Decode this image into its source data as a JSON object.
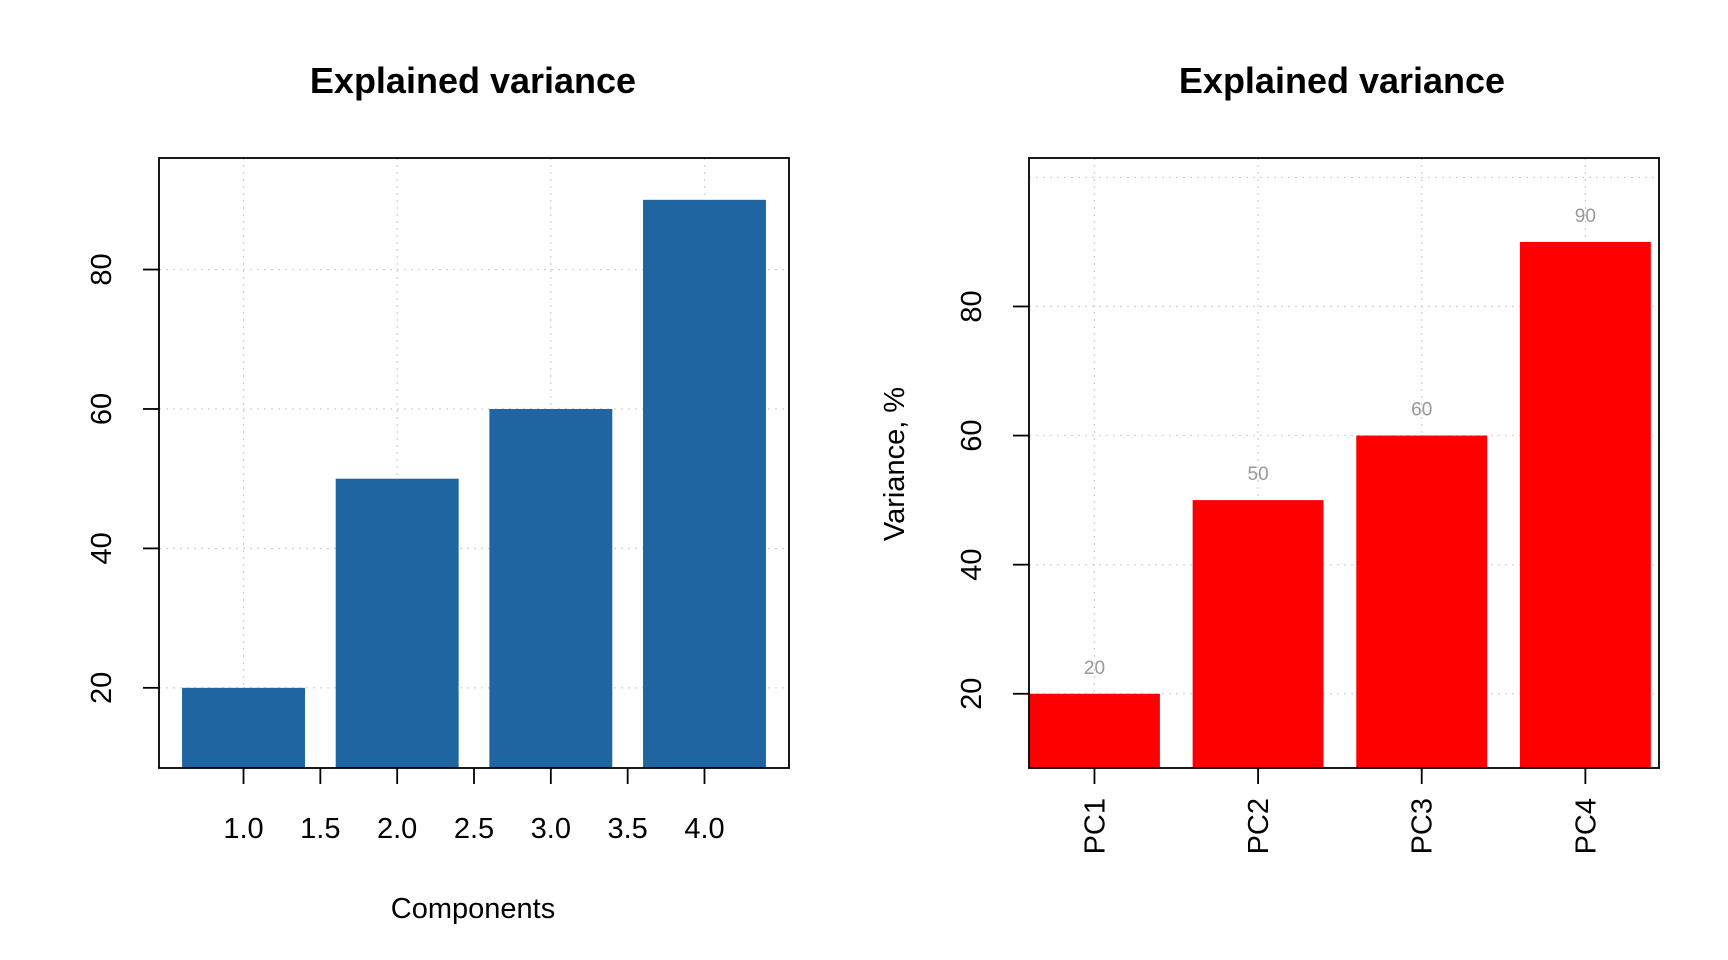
{
  "chart_data": [
    {
      "type": "bar",
      "title": "Explained variance",
      "xlabel": "Components",
      "ylabel": "",
      "categories": [
        "1",
        "2",
        "3",
        "4"
      ],
      "values": [
        20,
        50,
        60,
        90
      ],
      "x_ticks": [
        "1.0",
        "1.5",
        "2.0",
        "2.5",
        "3.0",
        "3.5",
        "4.0"
      ],
      "y_ticks": [
        "20",
        "40",
        "60",
        "80"
      ],
      "xlim": [
        0.45,
        4.55
      ],
      "ylim": [
        8.5,
        96
      ],
      "grid": true,
      "bar_color": "#1f65a1"
    },
    {
      "type": "bar",
      "title": "Explained variance",
      "xlabel": "",
      "ylabel": "Variance, %",
      "categories": [
        "PC1",
        "PC2",
        "PC3",
        "PC4"
      ],
      "values": [
        20,
        50,
        60,
        90
      ],
      "data_labels": [
        "20",
        "50",
        "60",
        "90"
      ],
      "y_ticks": [
        "20",
        "40",
        "60",
        "80"
      ],
      "ylim": [
        8.5,
        103
      ],
      "grid": true,
      "bar_color": "#ff0000"
    }
  ]
}
